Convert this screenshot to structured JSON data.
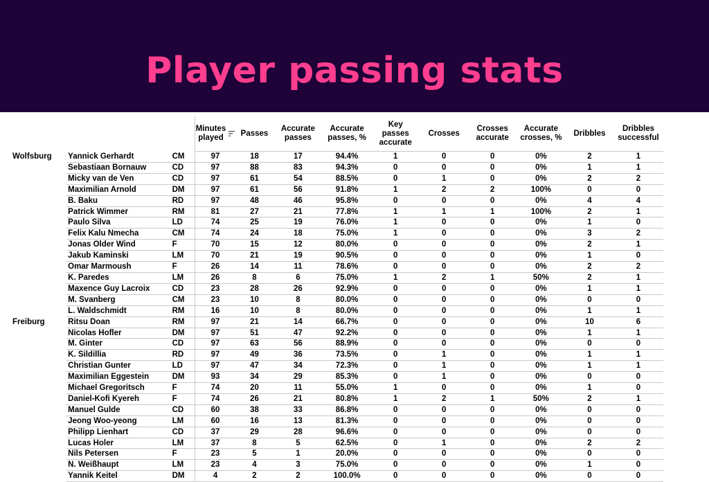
{
  "page": {
    "title": "Player passing stats"
  },
  "table": {
    "headers": {
      "minutes": [
        "Minutes",
        "played"
      ],
      "passes": [
        "Passes"
      ],
      "accurate_passes": [
        "Accurate",
        "passes"
      ],
      "accurate_passes_pct": [
        "Accurate",
        "passes, %"
      ],
      "key_passes": [
        "Key",
        "passes",
        "accurate"
      ],
      "crosses": [
        "Crosses"
      ],
      "crosses_accurate": [
        "Crosses",
        "accurate"
      ],
      "accurate_crosses_pct": [
        "Accurate",
        "crosses, %"
      ],
      "dribbles": [
        "Dribbles"
      ],
      "dribbles_successful": [
        "Dribbles",
        "successful"
      ]
    },
    "sort_icon": "sort-descending-icon",
    "groups": [
      {
        "team": "Wolfsburg",
        "rows": [
          [
            "Yannick Gerhardt",
            "CM",
            "97",
            "18",
            "17",
            "94.4%",
            "1",
            "0",
            "0",
            "0%",
            "2",
            "1"
          ],
          [
            "Sebastiaan Bornauw",
            "CD",
            "97",
            "88",
            "83",
            "94.3%",
            "0",
            "0",
            "0",
            "0%",
            "1",
            "1"
          ],
          [
            "Micky van de Ven",
            "CD",
            "97",
            "61",
            "54",
            "88.5%",
            "0",
            "1",
            "0",
            "0%",
            "2",
            "2"
          ],
          [
            "Maximilian Arnold",
            "DM",
            "97",
            "61",
            "56",
            "91.8%",
            "1",
            "2",
            "2",
            "100%",
            "0",
            "0"
          ],
          [
            "B. Baku",
            "RD",
            "97",
            "48",
            "46",
            "95.8%",
            "0",
            "0",
            "0",
            "0%",
            "4",
            "4"
          ],
          [
            "Patrick Wimmer",
            "RM",
            "81",
            "27",
            "21",
            "77.8%",
            "1",
            "1",
            "1",
            "100%",
            "2",
            "1"
          ],
          [
            "Paulo Silva",
            "LD",
            "74",
            "25",
            "19",
            "76.0%",
            "1",
            "0",
            "0",
            "0%",
            "1",
            "0"
          ],
          [
            "Felix Kalu Nmecha",
            "CM",
            "74",
            "24",
            "18",
            "75.0%",
            "1",
            "0",
            "0",
            "0%",
            "3",
            "2"
          ],
          [
            "Jonas Older Wind",
            "F",
            "70",
            "15",
            "12",
            "80.0%",
            "0",
            "0",
            "0",
            "0%",
            "2",
            "1"
          ],
          [
            "Jakub Kaminski",
            "LM",
            "70",
            "21",
            "19",
            "90.5%",
            "0",
            "0",
            "0",
            "0%",
            "1",
            "0"
          ],
          [
            "Omar Marmoush",
            "F",
            "26",
            "14",
            "11",
            "78.6%",
            "0",
            "0",
            "0",
            "0%",
            "2",
            "2"
          ],
          [
            "K.  Paredes",
            "LM",
            "26",
            "8",
            "6",
            "75.0%",
            "1",
            "2",
            "1",
            "50%",
            "2",
            "1"
          ],
          [
            "Maxence Guy Lacroix",
            "CD",
            "23",
            "28",
            "26",
            "92.9%",
            "0",
            "0",
            "0",
            "0%",
            "1",
            "1"
          ],
          [
            "M. Svanberg",
            "CM",
            "23",
            "10",
            "8",
            "80.0%",
            "0",
            "0",
            "0",
            "0%",
            "0",
            "0"
          ],
          [
            "L. Waldschmidt",
            "RM",
            "16",
            "10",
            "8",
            "80.0%",
            "0",
            "0",
            "0",
            "0%",
            "1",
            "1"
          ]
        ]
      },
      {
        "team": "Freiburg",
        "rows": [
          [
            "Ritsu Doan",
            "RM",
            "97",
            "21",
            "14",
            "66.7%",
            "0",
            "0",
            "0",
            "0%",
            "10",
            "6"
          ],
          [
            "Nicolas Hofler",
            "DM",
            "97",
            "51",
            "47",
            "92.2%",
            "0",
            "0",
            "0",
            "0%",
            "1",
            "1"
          ],
          [
            "M. Ginter",
            "CD",
            "97",
            "63",
            "56",
            "88.9%",
            "0",
            "0",
            "0",
            "0%",
            "0",
            "0"
          ],
          [
            "K. Sildillia",
            "RD",
            "97",
            "49",
            "36",
            "73.5%",
            "0",
            "1",
            "0",
            "0%",
            "1",
            "1"
          ],
          [
            "Christian Gunter",
            "LD",
            "97",
            "47",
            "34",
            "72.3%",
            "0",
            "1",
            "0",
            "0%",
            "1",
            "1"
          ],
          [
            "Maximilian Eggestein",
            "DM",
            "93",
            "34",
            "29",
            "85.3%",
            "0",
            "1",
            "0",
            "0%",
            "0",
            "0"
          ],
          [
            "Michael Gregoritsch",
            "F",
            "74",
            "20",
            "11",
            "55.0%",
            "1",
            "0",
            "0",
            "0%",
            "1",
            "0"
          ],
          [
            "Daniel-Kofi Kyereh",
            "F",
            "74",
            "26",
            "21",
            "80.8%",
            "1",
            "2",
            "1",
            "50%",
            "2",
            "1"
          ],
          [
            "Manuel Gulde",
            "CD",
            "60",
            "38",
            "33",
            "86.8%",
            "0",
            "0",
            "0",
            "0%",
            "0",
            "0"
          ],
          [
            "Jeong Woo-yeong",
            "LM",
            "60",
            "16",
            "13",
            "81.3%",
            "0",
            "0",
            "0",
            "0%",
            "0",
            "0"
          ],
          [
            "Philipp Lienhart",
            "CD",
            "37",
            "29",
            "28",
            "96.6%",
            "0",
            "0",
            "0",
            "0%",
            "0",
            "0"
          ],
          [
            "Lucas Holer",
            "LM",
            "37",
            "8",
            "5",
            "62.5%",
            "0",
            "1",
            "0",
            "0%",
            "2",
            "2"
          ],
          [
            "Nils Petersen",
            "F",
            "23",
            "5",
            "1",
            "20.0%",
            "0",
            "0",
            "0",
            "0%",
            "0",
            "0"
          ],
          [
            "N. Weißhaupt",
            "LM",
            "23",
            "4",
            "3",
            "75.0%",
            "0",
            "0",
            "0",
            "0%",
            "1",
            "0"
          ],
          [
            "Yannik Keitel",
            "DM",
            "4",
            "2",
            "2",
            "100.0%",
            "0",
            "0",
            "0",
            "0%",
            "0",
            "0"
          ]
        ]
      }
    ]
  }
}
